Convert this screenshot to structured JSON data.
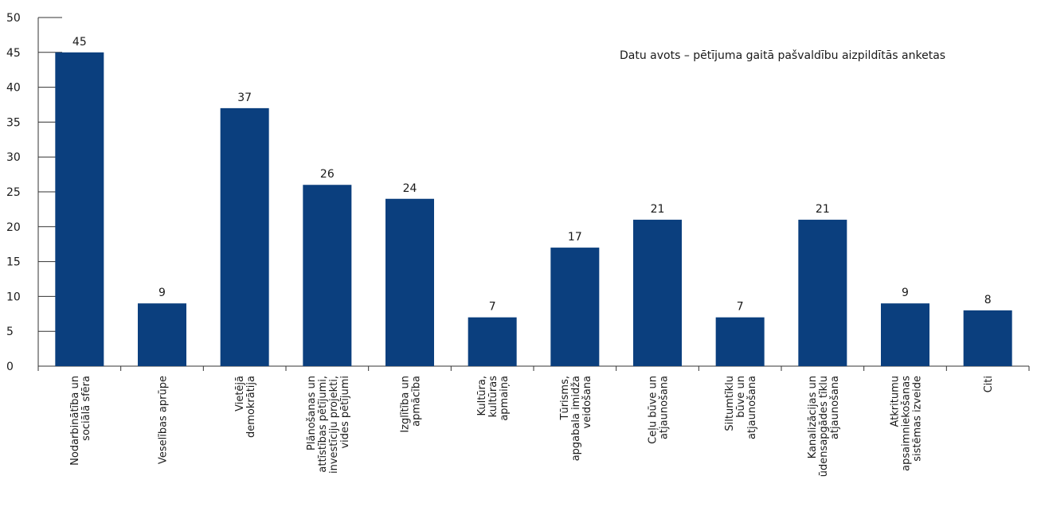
{
  "chart_data": {
    "type": "bar",
    "title": "",
    "xlabel": "",
    "ylabel": "",
    "ylim": [
      0,
      50
    ],
    "yticks": [
      0,
      5,
      10,
      15,
      20,
      25,
      30,
      35,
      40,
      45,
      50
    ],
    "grid": false,
    "bar_color": "#0b3f7e",
    "annotation": "Datu avots – pētījuma gaitā pašvaldību aizpildītās anketas",
    "categories": [
      [
        "Nodarbinātība un",
        "sociālā sfēra"
      ],
      [
        "Veselības aprūpe"
      ],
      [
        "Vietējā",
        "demokrātija"
      ],
      [
        "Plānošanas un",
        "attīstības pētījumi,",
        "investīciju projekti,",
        "vides pētījumi"
      ],
      [
        "Izglītība un",
        "apmācība"
      ],
      [
        "Kultūra,",
        "kultūras",
        "apmaiņa"
      ],
      [
        "Tūrisms,",
        "apgabala imidža",
        "veidošana"
      ],
      [
        "Ceļu būve un",
        "atjaunošana"
      ],
      [
        "Siltumtīklu",
        "būve un",
        "atjaunošana"
      ],
      [
        "Kanalizācijas un",
        "ūdensapgādes tīklu",
        "atjaunošana"
      ],
      [
        "Atkritumu",
        "apsaimniekošanas",
        "sistēmas izveide"
      ],
      [
        "Citi"
      ]
    ],
    "values": [
      45,
      9,
      37,
      26,
      24,
      7,
      17,
      21,
      7,
      21,
      9,
      8
    ]
  }
}
